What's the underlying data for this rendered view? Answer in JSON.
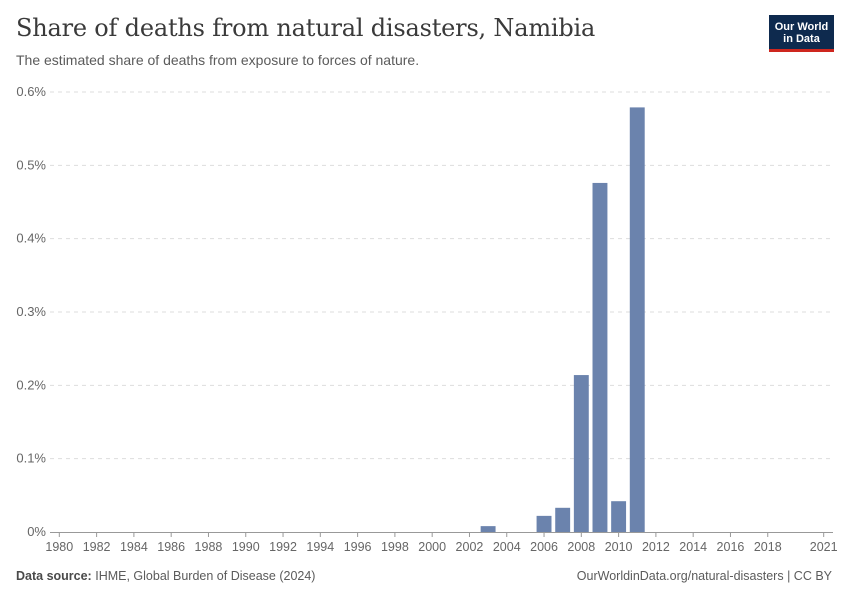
{
  "header": {
    "title": "Share of deaths from natural disasters, Namibia",
    "subtitle": "The estimated share of deaths from exposure to forces of nature."
  },
  "logo": {
    "line1": "Our World",
    "line2": "in Data",
    "bg_color": "#0e2a4e",
    "accent_color": "#ce261e"
  },
  "footer": {
    "source_label": "Data source:",
    "source_text": "IHME, Global Burden of Disease (2024)",
    "link": "OurWorldinData.org/natural-disasters | CC BY"
  },
  "chart_data": {
    "type": "bar",
    "title": "Share of deaths from natural disasters, Namibia",
    "xlabel": "",
    "ylabel": "",
    "bar_color": "#6b83ad",
    "grid": true,
    "ylim": [
      0,
      0.6
    ],
    "y_ticks": [
      "0%",
      "0.1%",
      "0.2%",
      "0.3%",
      "0.4%",
      "0.5%",
      "0.6%"
    ],
    "x_tick_labels": [
      "1980",
      "1982",
      "1984",
      "1986",
      "1988",
      "1990",
      "1992",
      "1994",
      "1996",
      "1998",
      "2000",
      "2002",
      "2004",
      "2006",
      "2008",
      "2010",
      "2012",
      "2014",
      "2016",
      "2018",
      "2021"
    ],
    "x": [
      1980,
      1981,
      1982,
      1983,
      1984,
      1985,
      1986,
      1987,
      1988,
      1989,
      1990,
      1991,
      1992,
      1993,
      1994,
      1995,
      1996,
      1997,
      1998,
      1999,
      2000,
      2001,
      2002,
      2003,
      2004,
      2005,
      2006,
      2007,
      2008,
      2009,
      2010,
      2011,
      2012,
      2013,
      2014,
      2015,
      2016,
      2017,
      2018,
      2019,
      2020,
      2021
    ],
    "values": [
      0,
      0,
      0,
      0,
      0,
      0,
      0,
      0,
      0,
      0,
      0,
      0,
      0,
      0,
      0,
      0,
      0,
      0,
      0,
      0,
      0,
      0,
      0,
      0.008,
      0,
      0,
      0.022,
      0.033,
      0.214,
      0.476,
      0.042,
      0.579,
      0,
      0,
      0,
      0,
      0,
      0,
      0,
      0,
      0,
      0
    ],
    "unit": "%"
  }
}
